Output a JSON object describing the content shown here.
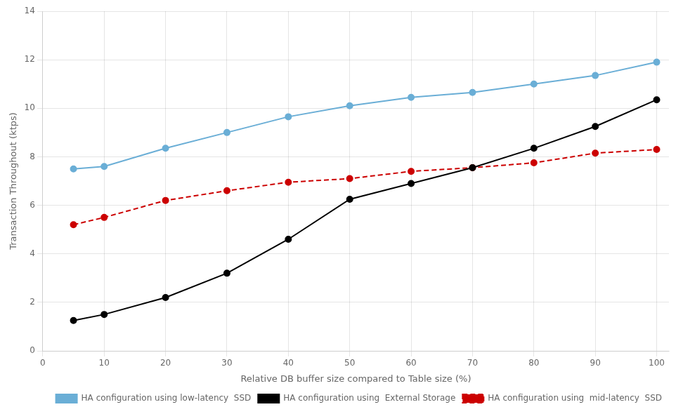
{
  "chart_data": {
    "type": "line",
    "x": [
      5,
      10,
      20,
      30,
      40,
      50,
      60,
      70,
      80,
      90,
      100
    ],
    "series": [
      {
        "name": "HA configuration using low-latency  SSD",
        "color": "#6aaed6",
        "marker": "circle",
        "line_style": "solid",
        "values": [
          7.5,
          7.6,
          8.35,
          9.0,
          9.65,
          10.1,
          10.45,
          10.65,
          11.0,
          11.35,
          11.9
        ]
      },
      {
        "name": "HA configuration using  External Storage",
        "color": "#000000",
        "marker": "circle",
        "line_style": "solid",
        "values": [
          1.25,
          1.5,
          2.2,
          3.2,
          4.6,
          6.25,
          6.9,
          7.55,
          8.35,
          9.25,
          10.35
        ]
      },
      {
        "name": "HA configuration using  mid-latency  SSD",
        "color": "#cc0000",
        "marker": "circle",
        "line_style": "dashed",
        "values": [
          5.2,
          5.5,
          6.2,
          6.6,
          6.95,
          7.1,
          7.4,
          7.55,
          7.75,
          8.15,
          8.3
        ]
      }
    ],
    "xlabel": "Relative DB buffer size compared to Table size (%)",
    "ylabel": "Transaction Throughout (ktps)",
    "xlim": [
      0,
      102
    ],
    "ylim": [
      0,
      14
    ],
    "xticks": [
      0,
      10,
      20,
      30,
      40,
      50,
      60,
      70,
      80,
      90,
      100
    ],
    "yticks": [
      0,
      2,
      4,
      6,
      8,
      10,
      12,
      14
    ],
    "grid": true,
    "legend": "lower right"
  }
}
